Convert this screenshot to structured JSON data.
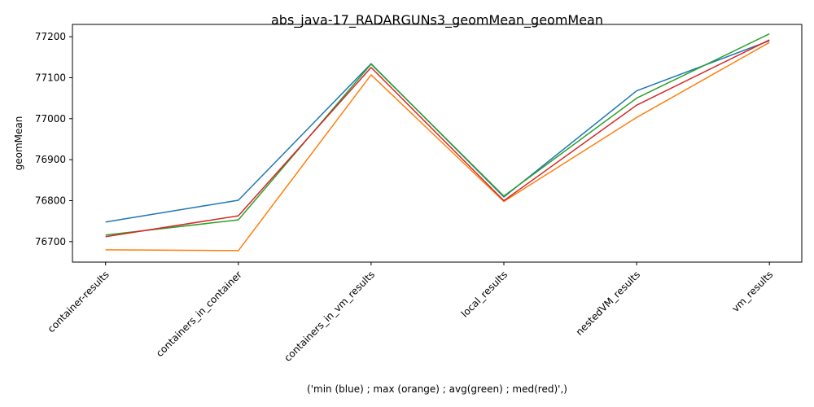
{
  "chart_data": {
    "type": "line",
    "title": "abs_java-17_RADARGUNs3_geomMean_geomMean",
    "xlabel": "('min (blue) ; max (orange) ; avg(green) ; med(red)',)",
    "ylabel": "geomMean",
    "categories": [
      "container-results",
      "containers_in_container",
      "containers_in_vm_results",
      "local_results",
      "nestedVM_results",
      "vm_results"
    ],
    "ylim": [
      76650,
      77230
    ],
    "yticks": [
      76700,
      76800,
      76900,
      77000,
      77100,
      77200
    ],
    "grid": false,
    "series": [
      {
        "color": "#1f77b4",
        "values": [
          76748,
          76801,
          77134,
          76809,
          77068,
          77190
        ]
      },
      {
        "color": "#ff7f0e",
        "values": [
          76680,
          76678,
          77107,
          76798,
          77003,
          77186
        ]
      },
      {
        "color": "#2ca02c",
        "values": [
          76716,
          76753,
          77133,
          76811,
          77050,
          77207
        ]
      },
      {
        "color": "#d62728",
        "values": [
          76712,
          76763,
          77125,
          76800,
          77033,
          77192
        ]
      }
    ]
  }
}
